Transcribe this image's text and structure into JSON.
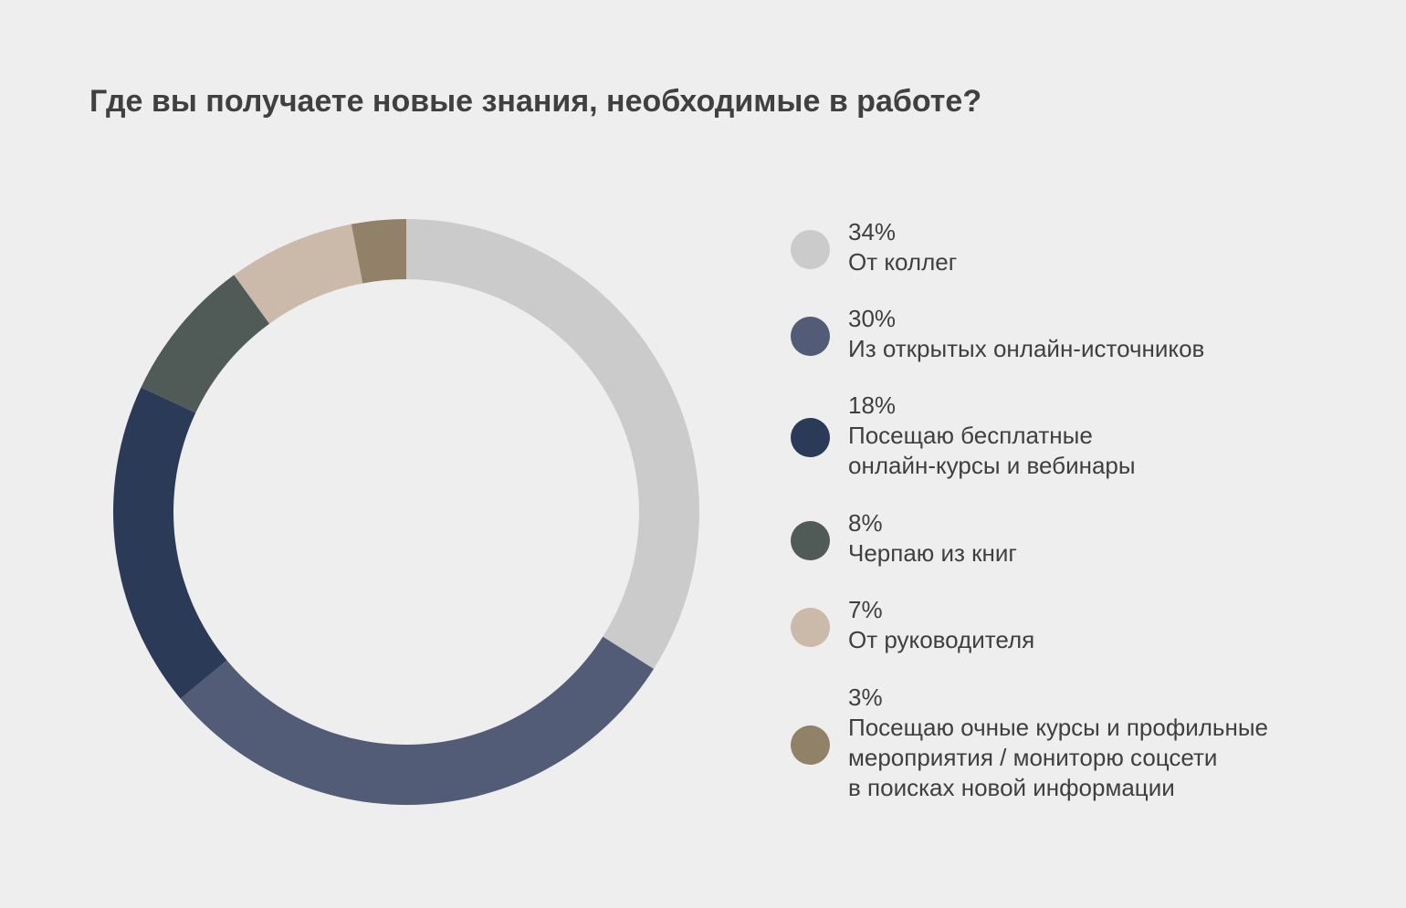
{
  "chart_data": {
    "type": "pie",
    "title": "Где вы получаете новые знания, необходимые в работе?",
    "donut": true,
    "legend_position": "right",
    "slices": [
      {
        "value": 34,
        "value_label": "34%",
        "label": "От коллег",
        "color": "#cbcbcb"
      },
      {
        "value": 30,
        "value_label": "30%",
        "label": "Из открытых онлайн-источников",
        "color": "#525c77"
      },
      {
        "value": 18,
        "value_label": "18%",
        "label": "Посещаю бесплатные\nонлайн-курсы и вебинары",
        "color": "#2b3a57"
      },
      {
        "value": 8,
        "value_label": "8%",
        "label": "Черпаю из книг",
        "color": "#505b58"
      },
      {
        "value": 7,
        "value_label": "7%",
        "label": "От руководителя",
        "color": "#cbb9aa"
      },
      {
        "value": 3,
        "value_label": "3%",
        "label": "Посещаю очные курсы и профильные\nмероприятия / мониторю соцсети\nв поисках новой информации",
        "color": "#918168"
      }
    ]
  }
}
